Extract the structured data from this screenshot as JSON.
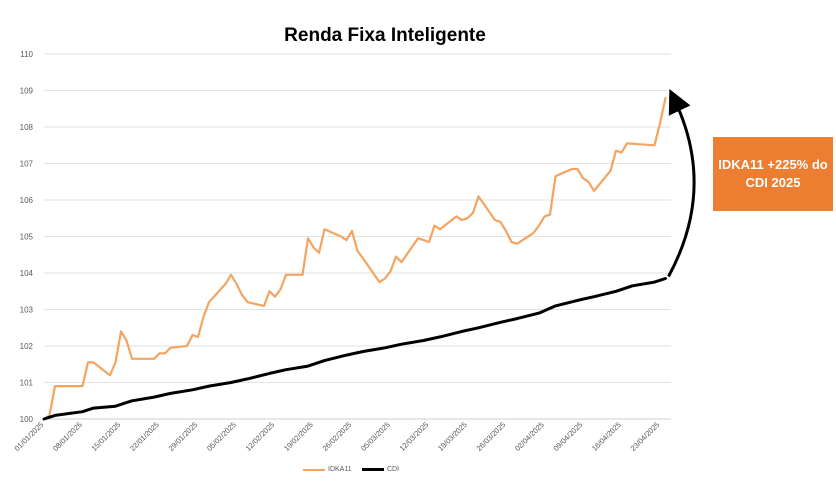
{
  "chart_data": {
    "type": "line",
    "title": "Renda Fixa Inteligente",
    "xlabel": "",
    "ylabel": "",
    "ylim": [
      100,
      110
    ],
    "yticks": [
      "100",
      "101",
      "102",
      "103",
      "104",
      "105",
      "106",
      "107",
      "108",
      "109",
      "110"
    ],
    "xlim": [
      "2025-01-01",
      "2025-04-25"
    ],
    "x_tick_labels": [
      "01/01/2025",
      "08/01/2025",
      "15/01/2025",
      "22/01/2025",
      "29/01/2025",
      "05/02/2025",
      "12/02/2025",
      "19/02/2025",
      "26/02/2025",
      "05/03/2025",
      "12/03/2025",
      "19/03/2025",
      "26/03/2025",
      "02/04/2025",
      "09/04/2025",
      "16/04/2025",
      "23/04/2025"
    ],
    "grid": true,
    "legend_position": "bottom",
    "series": [
      {
        "name": "IDKA11",
        "color": "#F4A460",
        "points": [
          [
            "2025-01-01",
            100.0
          ],
          [
            "2025-01-02",
            100.1
          ],
          [
            "2025-01-03",
            100.9
          ],
          [
            "2025-01-08",
            100.9
          ],
          [
            "2025-01-09",
            101.55
          ],
          [
            "2025-01-10",
            101.55
          ],
          [
            "2025-01-13",
            101.2
          ],
          [
            "2025-01-14",
            101.55
          ],
          [
            "2025-01-15",
            102.4
          ],
          [
            "2025-01-16",
            102.15
          ],
          [
            "2025-01-17",
            101.65
          ],
          [
            "2025-01-20",
            101.65
          ],
          [
            "2025-01-21",
            101.65
          ],
          [
            "2025-01-22",
            101.8
          ],
          [
            "2025-01-23",
            101.8
          ],
          [
            "2025-01-24",
            101.95
          ],
          [
            "2025-01-27",
            102.0
          ],
          [
            "2025-01-28",
            102.3
          ],
          [
            "2025-01-29",
            102.25
          ],
          [
            "2025-01-30",
            102.8
          ],
          [
            "2025-01-31",
            103.2
          ],
          [
            "2025-02-03",
            103.7
          ],
          [
            "2025-02-04",
            103.95
          ],
          [
            "2025-02-05",
            103.7
          ],
          [
            "2025-02-06",
            103.4
          ],
          [
            "2025-02-07",
            103.2
          ],
          [
            "2025-02-10",
            103.1
          ],
          [
            "2025-02-11",
            103.5
          ],
          [
            "2025-02-12",
            103.35
          ],
          [
            "2025-02-13",
            103.55
          ],
          [
            "2025-02-14",
            103.95
          ],
          [
            "2025-02-17",
            103.95
          ],
          [
            "2025-02-18",
            104.95
          ],
          [
            "2025-02-19",
            104.7
          ],
          [
            "2025-02-20",
            104.55
          ],
          [
            "2025-02-21",
            105.2
          ],
          [
            "2025-02-24",
            105.0
          ],
          [
            "2025-02-25",
            104.9
          ],
          [
            "2025-02-26",
            105.15
          ],
          [
            "2025-02-27",
            104.6
          ],
          [
            "2025-02-28",
            104.4
          ],
          [
            "2025-03-03",
            103.75
          ],
          [
            "2025-03-04",
            103.85
          ],
          [
            "2025-03-05",
            104.05
          ],
          [
            "2025-03-06",
            104.45
          ],
          [
            "2025-03-07",
            104.3
          ],
          [
            "2025-03-10",
            104.95
          ],
          [
            "2025-03-11",
            104.9
          ],
          [
            "2025-03-12",
            104.85
          ],
          [
            "2025-03-13",
            105.3
          ],
          [
            "2025-03-14",
            105.2
          ],
          [
            "2025-03-17",
            105.55
          ],
          [
            "2025-03-18",
            105.45
          ],
          [
            "2025-03-19",
            105.5
          ],
          [
            "2025-03-20",
            105.65
          ],
          [
            "2025-03-21",
            106.1
          ],
          [
            "2025-03-24",
            105.45
          ],
          [
            "2025-03-25",
            105.4
          ],
          [
            "2025-03-26",
            105.15
          ],
          [
            "2025-03-27",
            104.85
          ],
          [
            "2025-03-28",
            104.8
          ],
          [
            "2025-03-31",
            105.1
          ],
          [
            "2025-04-01",
            105.3
          ],
          [
            "2025-04-02",
            105.55
          ],
          [
            "2025-04-03",
            105.6
          ],
          [
            "2025-04-04",
            106.65
          ],
          [
            "2025-04-07",
            106.85
          ],
          [
            "2025-04-08",
            106.85
          ],
          [
            "2025-04-09",
            106.6
          ],
          [
            "2025-04-10",
            106.5
          ],
          [
            "2025-04-11",
            106.25
          ],
          [
            "2025-04-14",
            106.8
          ],
          [
            "2025-04-15",
            107.35
          ],
          [
            "2025-04-16",
            107.3
          ],
          [
            "2025-04-17",
            107.55
          ],
          [
            "2025-04-22",
            107.5
          ],
          [
            "2025-04-23",
            108.1
          ],
          [
            "2025-04-24",
            108.8
          ]
        ]
      },
      {
        "name": "CDI",
        "color": "#000000",
        "points": [
          [
            "2025-01-01",
            100.0
          ],
          [
            "2025-01-03",
            100.1
          ],
          [
            "2025-01-08",
            100.2
          ],
          [
            "2025-01-10",
            100.3
          ],
          [
            "2025-01-14",
            100.35
          ],
          [
            "2025-01-17",
            100.5
          ],
          [
            "2025-01-21",
            100.6
          ],
          [
            "2025-01-24",
            100.7
          ],
          [
            "2025-01-28",
            100.8
          ],
          [
            "2025-01-31",
            100.9
          ],
          [
            "2025-02-04",
            101.0
          ],
          [
            "2025-02-07",
            101.1
          ],
          [
            "2025-02-11",
            101.25
          ],
          [
            "2025-02-14",
            101.35
          ],
          [
            "2025-02-18",
            101.45
          ],
          [
            "2025-02-21",
            101.6
          ],
          [
            "2025-02-25",
            101.75
          ],
          [
            "2025-02-28",
            101.85
          ],
          [
            "2025-03-04",
            101.95
          ],
          [
            "2025-03-07",
            102.05
          ],
          [
            "2025-03-11",
            102.15
          ],
          [
            "2025-03-14",
            102.25
          ],
          [
            "2025-03-18",
            102.4
          ],
          [
            "2025-03-21",
            102.5
          ],
          [
            "2025-03-25",
            102.65
          ],
          [
            "2025-03-28",
            102.75
          ],
          [
            "2025-04-01",
            102.9
          ],
          [
            "2025-04-04",
            103.1
          ],
          [
            "2025-04-08",
            103.25
          ],
          [
            "2025-04-11",
            103.35
          ],
          [
            "2025-04-15",
            103.5
          ],
          [
            "2025-04-18",
            103.65
          ],
          [
            "2025-04-22",
            103.75
          ],
          [
            "2025-04-24",
            103.85
          ]
        ]
      }
    ],
    "annotation": {
      "text": "IDKA11 +225% do CDI 2025",
      "color": "#ED7D31"
    }
  }
}
